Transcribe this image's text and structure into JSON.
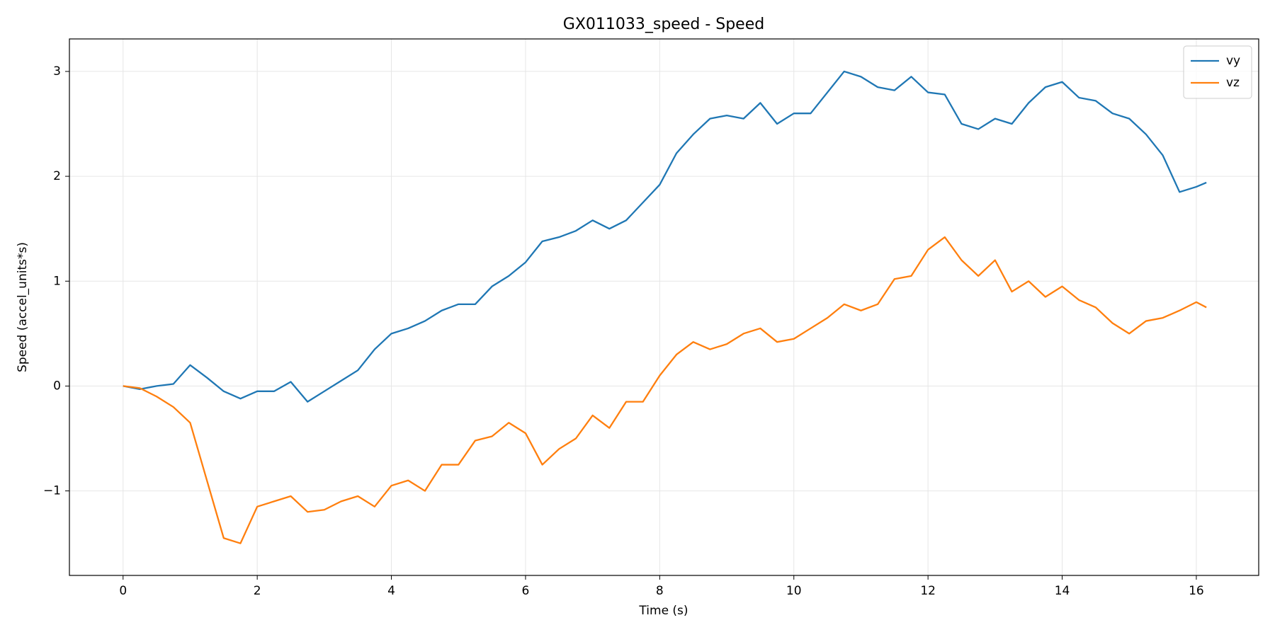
{
  "chart_data": {
    "type": "line",
    "title": "GX011033_speed - Speed",
    "xlabel": "Time (s)",
    "ylabel": "Speed (accel_units*s)",
    "x": [
      0,
      0.25,
      0.5,
      0.75,
      1,
      1.25,
      1.5,
      1.75,
      2,
      2.25,
      2.5,
      2.75,
      3,
      3.25,
      3.5,
      3.75,
      4,
      4.25,
      4.5,
      4.75,
      5,
      5.25,
      5.5,
      5.75,
      6,
      6.25,
      6.5,
      6.75,
      7,
      7.25,
      7.5,
      7.75,
      8,
      8.25,
      8.5,
      8.75,
      9,
      9.25,
      9.5,
      9.75,
      10,
      10.25,
      10.5,
      10.75,
      11,
      11.25,
      11.5,
      11.75,
      12,
      12.25,
      12.5,
      12.75,
      13,
      13.25,
      13.5,
      13.75,
      14,
      14.25,
      14.5,
      14.75,
      15,
      15.25,
      15.5,
      15.75,
      16,
      16.15
    ],
    "series": [
      {
        "name": "vy",
        "color": "#1f77b4",
        "values": [
          0,
          -0.03,
          0,
          0.02,
          0.2,
          0.08,
          -0.05,
          -0.12,
          -0.05,
          -0.05,
          0.04,
          -0.15,
          -0.05,
          0.05,
          0.15,
          0.35,
          0.5,
          0.55,
          0.62,
          0.72,
          0.78,
          0.78,
          0.95,
          1.05,
          1.18,
          1.38,
          1.42,
          1.48,
          1.58,
          1.5,
          1.58,
          1.75,
          1.92,
          2.22,
          2.4,
          2.55,
          2.58,
          2.55,
          2.7,
          2.5,
          2.6,
          2.6,
          2.8,
          3,
          2.95,
          2.85,
          2.82,
          2.95,
          2.8,
          2.78,
          2.5,
          2.45,
          2.55,
          2.5,
          2.7,
          2.85,
          2.9,
          2.75,
          2.72,
          2.6,
          2.55,
          2.4,
          2.2,
          1.85,
          1.9,
          1.94
        ]
      },
      {
        "name": "vz",
        "color": "#ff7f0e",
        "values": [
          0,
          -0.02,
          -0.1,
          -0.2,
          -0.35,
          -0.9,
          -1.45,
          -1.5,
          -1.15,
          -1.1,
          -1.05,
          -1.2,
          -1.18,
          -1.1,
          -1.05,
          -1.15,
          -0.95,
          -0.9,
          -1,
          -0.75,
          -0.75,
          -0.52,
          -0.48,
          -0.35,
          -0.45,
          -0.75,
          -0.6,
          -0.5,
          -0.28,
          -0.4,
          -0.15,
          -0.15,
          0.1,
          0.3,
          0.42,
          0.35,
          0.4,
          0.5,
          0.55,
          0.42,
          0.45,
          0.55,
          0.65,
          0.78,
          0.72,
          0.78,
          1.02,
          1.05,
          1.3,
          1.42,
          1.2,
          1.05,
          1.2,
          0.9,
          1,
          0.85,
          0.95,
          0.82,
          0.75,
          0.6,
          0.5,
          0.62,
          0.65,
          0.72,
          0.8,
          0.75
        ]
      }
    ],
    "xlim": [
      -0.8,
      16.93
    ],
    "ylim": [
      -1.806,
      3.31
    ],
    "xticks": [
      0,
      2,
      4,
      6,
      8,
      10,
      12,
      14,
      16
    ],
    "yticks": [
      {
        "value": -1,
        "label": "−1"
      },
      0,
      1,
      2,
      3
    ],
    "grid": true,
    "legend": "upper right"
  }
}
